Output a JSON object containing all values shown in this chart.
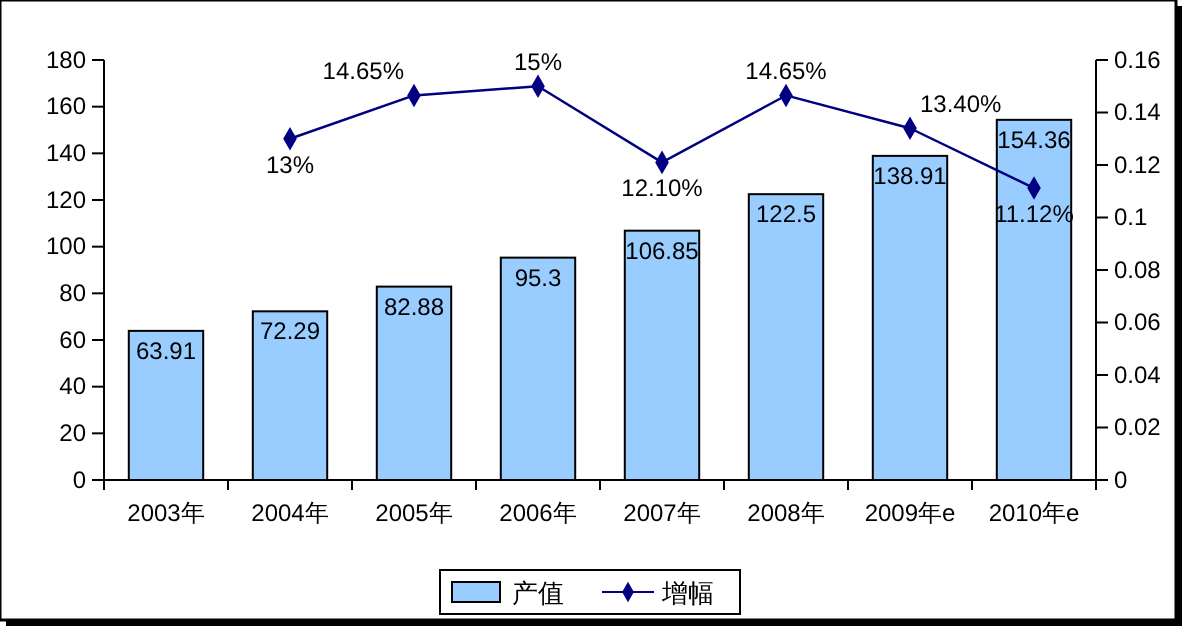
{
  "chart_data": {
    "type": "bar",
    "categories": [
      "2003年",
      "2004年",
      "2005年",
      "2006年",
      "2007年",
      "2008年",
      "2009年e",
      "2010年e"
    ],
    "series": [
      {
        "name": "产值",
        "type": "bar",
        "color": "#99ccff",
        "values": [
          63.91,
          72.29,
          82.88,
          95.3,
          106.85,
          122.5,
          138.91,
          154.36
        ]
      },
      {
        "name": "增幅",
        "type": "line",
        "axis": "y2",
        "color": "#000080",
        "marker": "diamond",
        "values": [
          null,
          0.13,
          0.1465,
          0.15,
          0.121,
          0.1465,
          0.134,
          0.1112
        ],
        "value_labels": [
          null,
          "13%",
          "14.65%",
          "15%",
          "12.10%",
          "14.65%",
          "13.40%",
          "11.12%"
        ]
      }
    ],
    "data_labels": true,
    "ylim": [
      0,
      180
    ],
    "yticks": [
      0,
      20,
      40,
      60,
      80,
      100,
      120,
      140,
      160,
      180
    ],
    "y2lim": [
      0,
      0.16
    ],
    "y2ticks": [
      0,
      0.02,
      0.04,
      0.06,
      0.08,
      0.1,
      0.12,
      0.14,
      0.16
    ],
    "legend": "bottom",
    "grid": false
  }
}
